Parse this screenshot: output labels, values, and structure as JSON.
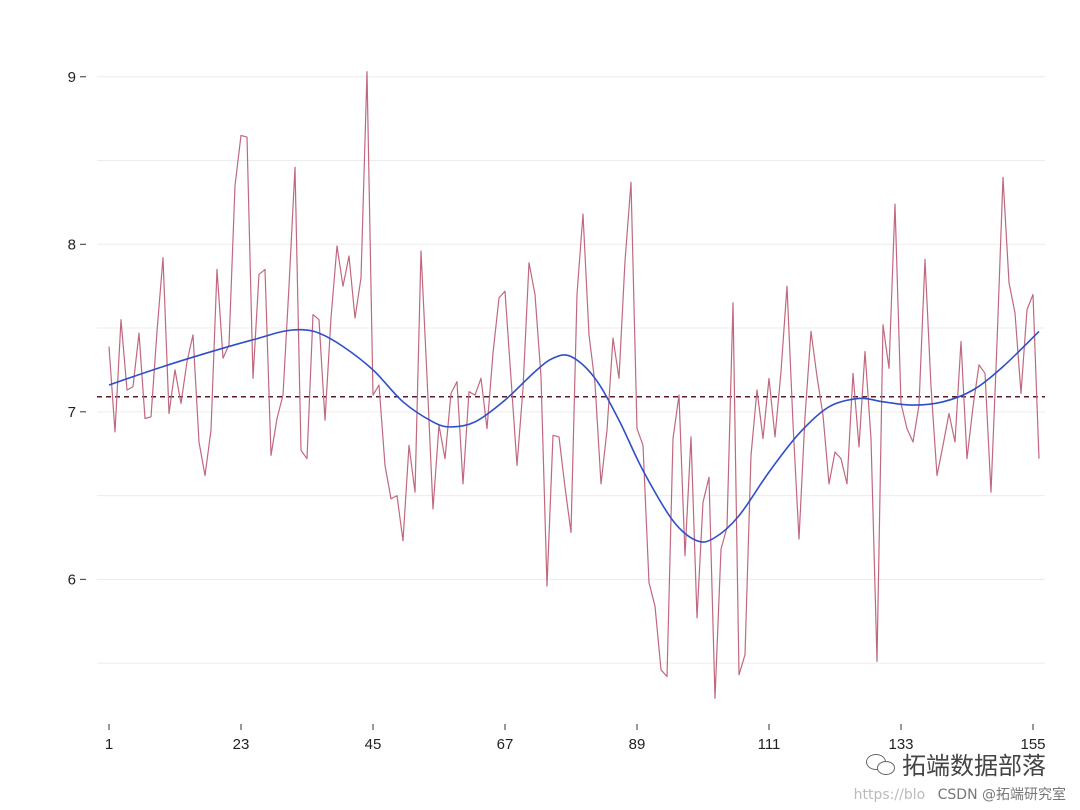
{
  "chart_data": {
    "type": "line",
    "title": "",
    "xlabel": "",
    "ylabel": "",
    "xlim": [
      -1,
      157
    ],
    "ylim": [
      5.25,
      9.1
    ],
    "x_ticks": [
      1,
      23,
      45,
      67,
      89,
      111,
      133,
      155
    ],
    "y_ticks": [
      6,
      7,
      8,
      9
    ],
    "grid": "horizontal",
    "legend": "none",
    "reference_line": {
      "y": 7.09,
      "style": "dashed",
      "color": "#5a1a2a"
    },
    "series": [
      {
        "style": "raw",
        "color": "#c0687e",
        "x_start": 1,
        "values": [
          7.39,
          6.88,
          7.55,
          7.13,
          7.15,
          7.47,
          6.96,
          6.97,
          7.48,
          7.92,
          6.99,
          7.25,
          7.05,
          7.3,
          7.46,
          6.82,
          6.62,
          6.89,
          7.85,
          7.32,
          7.4,
          8.35,
          8.65,
          8.64,
          7.2,
          7.82,
          7.85,
          6.74,
          6.96,
          7.1,
          7.75,
          8.46,
          6.77,
          6.72,
          7.58,
          7.55,
          6.95,
          7.56,
          7.99,
          7.75,
          7.93,
          7.56,
          7.8,
          9.03,
          7.1,
          7.16,
          6.68,
          6.48,
          6.5,
          6.23,
          6.8,
          6.52,
          7.96,
          7.21,
          6.42,
          6.92,
          6.72,
          7.11,
          7.18,
          6.57,
          7.12,
          7.1,
          7.2,
          6.9,
          7.35,
          7.68,
          7.72,
          7.2,
          6.68,
          7.14,
          7.89,
          7.7,
          7.21,
          5.96,
          6.86,
          6.85,
          6.55,
          6.28,
          7.7,
          8.18,
          7.46,
          7.17,
          6.57,
          6.89,
          7.44,
          7.2,
          7.9,
          8.37,
          6.9,
          6.8,
          5.98,
          5.84,
          5.46,
          5.42,
          6.84,
          7.1,
          6.14,
          6.85,
          5.77,
          6.46,
          6.61,
          5.29,
          6.18,
          6.31,
          7.65,
          5.43,
          5.55,
          6.74,
          7.13,
          6.84,
          7.2,
          6.85,
          7.24,
          7.75,
          6.93,
          6.24,
          6.97,
          7.48,
          7.21,
          6.98,
          6.57,
          6.76,
          6.72,
          6.57,
          7.23,
          6.79,
          7.36,
          6.84,
          5.51,
          7.52,
          7.26,
          8.24,
          7.05,
          6.9,
          6.82,
          7.04,
          7.91,
          7.15,
          6.62,
          6.8,
          6.99,
          6.82,
          7.42,
          6.72,
          7.03,
          7.28,
          7.23,
          6.52,
          7.41,
          8.4,
          7.77,
          7.59,
          7.11,
          7.61,
          7.7,
          6.72
        ]
      },
      {
        "style": "smooth",
        "color": "#2f4fc9",
        "points": [
          [
            1,
            7.16
          ],
          [
            10,
            7.27
          ],
          [
            20,
            7.38
          ],
          [
            26,
            7.44
          ],
          [
            30,
            7.48
          ],
          [
            33,
            7.49
          ],
          [
            36,
            7.47
          ],
          [
            40,
            7.39
          ],
          [
            45,
            7.25
          ],
          [
            50,
            7.06
          ],
          [
            55,
            6.94
          ],
          [
            58,
            6.91
          ],
          [
            62,
            6.94
          ],
          [
            67,
            7.07
          ],
          [
            72,
            7.24
          ],
          [
            75,
            7.32
          ],
          [
            78,
            7.33
          ],
          [
            82,
            7.2
          ],
          [
            86,
            6.95
          ],
          [
            90,
            6.65
          ],
          [
            95,
            6.35
          ],
          [
            99,
            6.23
          ],
          [
            102,
            6.25
          ],
          [
            106,
            6.38
          ],
          [
            111,
            6.64
          ],
          [
            116,
            6.87
          ],
          [
            121,
            7.03
          ],
          [
            126,
            7.08
          ],
          [
            130,
            7.06
          ],
          [
            135,
            7.04
          ],
          [
            140,
            7.06
          ],
          [
            145,
            7.13
          ],
          [
            150,
            7.27
          ],
          [
            156,
            7.48
          ]
        ]
      }
    ]
  },
  "watermark": {
    "brand": "拓端数据部落",
    "source": "CSDN @拓端研究室",
    "url_fragment": "https://blo"
  }
}
